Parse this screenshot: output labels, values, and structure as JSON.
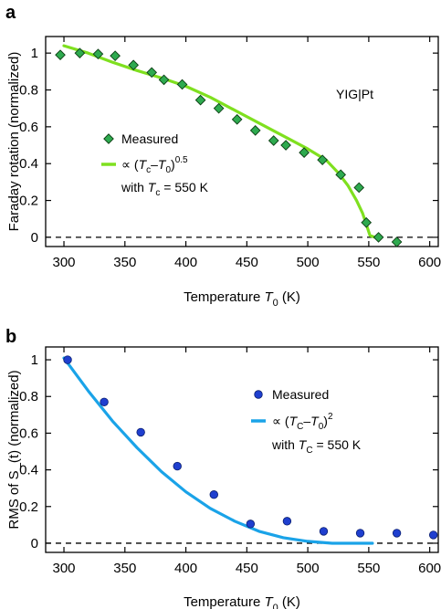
{
  "chart_data": [
    {
      "type": "scatter",
      "panel_label": "a",
      "xlabel_main": "Temperature ",
      "xlabel_var": "T",
      "xlabel_sub": "0",
      "xlabel_unit": " (K)",
      "ylabel": "Faraday rotation (normalized)",
      "xlim": [
        285,
        607
      ],
      "ylim": [
        -0.05,
        1.09
      ],
      "xticks": [
        300,
        350,
        400,
        450,
        500,
        550,
        600
      ],
      "xtick_labels": [
        "300",
        "350",
        "400",
        "450",
        "500",
        "550",
        "600"
      ],
      "yticks": [
        0,
        0.2,
        0.4,
        0.6,
        0.8,
        1
      ],
      "ytick_labels": [
        "0",
        "0.2",
        "0.4",
        "0.6",
        "0.8",
        "1"
      ],
      "annotation": "YIG|Pt",
      "zero_line": true,
      "series": [
        {
          "name": "Measured",
          "kind": "points",
          "marker": "diamond",
          "color": "#2eaa4f",
          "x": [
            297,
            313,
            328,
            342,
            357,
            372,
            382,
            397,
            412,
            427,
            442,
            457,
            472,
            482,
            497,
            512,
            527,
            542,
            548,
            558,
            573
          ],
          "y": [
            0.99,
            1.0,
            0.995,
            0.985,
            0.935,
            0.895,
            0.855,
            0.83,
            0.745,
            0.7,
            0.64,
            0.58,
            0.525,
            0.5,
            0.46,
            0.42,
            0.34,
            0.27,
            0.08,
            0.0,
            -0.025
          ]
        },
        {
          "name": "∝ (Tc–T0)^0.5 with Tc = 550 K",
          "kind": "line",
          "color": "#7fe01f",
          "x": [
            300,
            320,
            340,
            360,
            380,
            400,
            420,
            440,
            460,
            480,
            500,
            515,
            525,
            533,
            540,
            545,
            548,
            551,
            555
          ],
          "y": [
            1.04,
            1.0,
            0.95,
            0.905,
            0.865,
            0.82,
            0.76,
            0.69,
            0.62,
            0.55,
            0.48,
            0.42,
            0.35,
            0.28,
            0.2,
            0.13,
            0.07,
            0.01,
            0.0
          ]
        }
      ],
      "legend": [
        {
          "label": "Measured"
        },
        {
          "prefix": "∝ (",
          "T1": "T",
          "T1sub": "c",
          "dash": "–",
          "T2": "T",
          "T2sub": "0",
          "close": ")",
          "exp": "0.5",
          "line2_pre": "with ",
          "Tc": "T",
          "Tcsub": "c",
          "line2_post": " = 550 K"
        }
      ]
    },
    {
      "type": "scatter",
      "panel_label": "b",
      "xlabel_main": "Temperature ",
      "xlabel_var": "T",
      "xlabel_sub": "0",
      "xlabel_unit": " (K)",
      "ylabel": "RMS of S_(t) (normalized)",
      "xlim": [
        285,
        607
      ],
      "ylim": [
        -0.05,
        1.07
      ],
      "xticks": [
        300,
        350,
        400,
        450,
        500,
        550,
        600
      ],
      "xtick_labels": [
        "300",
        "350",
        "400",
        "450",
        "500",
        "550",
        "600"
      ],
      "yticks": [
        0,
        0.2,
        0.4,
        0.6,
        0.8,
        1
      ],
      "ytick_labels": [
        "0",
        "0.2",
        "0.4",
        "0.6",
        "0.8",
        "1"
      ],
      "zero_line": true,
      "series": [
        {
          "name": "Measured",
          "kind": "points",
          "marker": "circle",
          "color": "#1f3fcf",
          "x": [
            303,
            333,
            363,
            393,
            423,
            453,
            483,
            513,
            543,
            573,
            603
          ],
          "y": [
            1.0,
            0.77,
            0.605,
            0.42,
            0.265,
            0.105,
            0.12,
            0.065,
            0.055,
            0.055,
            0.045
          ]
        },
        {
          "name": "∝ (TC–T0)^2 with TC = 550 K",
          "kind": "line",
          "color": "#1aa3e8",
          "x": [
            300,
            320,
            340,
            360,
            380,
            400,
            420,
            440,
            460,
            480,
            500,
            520,
            535,
            545,
            553
          ],
          "y": [
            1.01,
            0.83,
            0.665,
            0.52,
            0.39,
            0.28,
            0.19,
            0.12,
            0.065,
            0.03,
            0.01,
            0.0,
            0.0,
            0.0,
            0.0
          ]
        }
      ],
      "legend": [
        {
          "label": "Measured"
        },
        {
          "prefix": "∝ (",
          "T1": "T",
          "T1sub": "C",
          "dash": "–",
          "T2": "T",
          "T2sub": "0",
          "close": ")",
          "exp": "2",
          "line2_pre": "with ",
          "Tc": "T",
          "Tcsub": "C",
          "line2_post": " = 550 K"
        }
      ]
    }
  ]
}
